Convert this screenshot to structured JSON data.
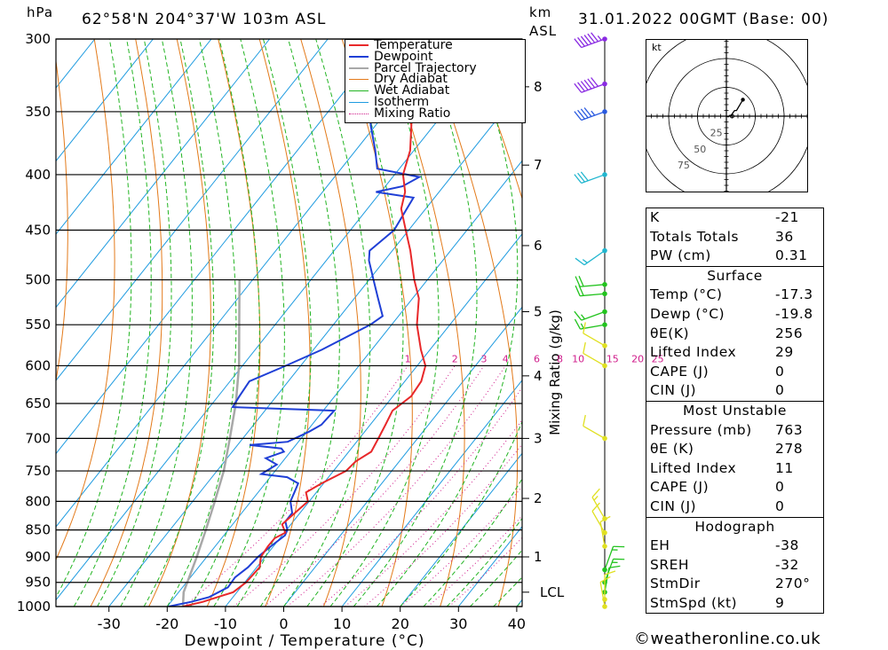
{
  "header": {
    "pressure_unit": "hPa",
    "location": "62°58'N  204°37'W  103m  ASL",
    "height_unit_line1": "km",
    "height_unit_line2": "ASL",
    "datetime": "31.01.2022  00GMT  (Base: 00)"
  },
  "colors": {
    "temperature": "#e8282a",
    "dewpoint": "#1f3fd6",
    "parcel": "#a8a8a8",
    "dry_adiabat": "#e37a1a",
    "wet_adiabat": "#22b422",
    "isotherm": "#1e9be0",
    "mixing_ratio": "#d01c8b",
    "wind_purple": "#8a2be2",
    "wind_blue": "#2a5ae0",
    "wind_cyan": "#21b6cf",
    "wind_green": "#22c31e",
    "wind_yellow": "#e0e020"
  },
  "chart_data": {
    "type": "line",
    "chart_kind": "skew-T log-P sounding",
    "xlabel": "Dewpoint / Temperature (°C)",
    "ylabel_left": "hPa",
    "ylabel_right": "Mixing Ratio (g/kg)",
    "xlim": [
      -40,
      40
    ],
    "ylim_pressure": [
      1000,
      300
    ],
    "x_ticks": [
      "-30",
      "-20",
      "-10",
      "0",
      "10",
      "20",
      "30",
      "40"
    ],
    "pressure_ticks": [
      "300",
      "350",
      "400",
      "450",
      "500",
      "550",
      "600",
      "650",
      "700",
      "750",
      "800",
      "850",
      "900",
      "950",
      "1000"
    ],
    "height_ticks_km": [
      {
        "label": "1",
        "p": 900
      },
      {
        "label": "2",
        "p": 795
      },
      {
        "label": "3",
        "p": 700
      },
      {
        "label": "4",
        "p": 613
      },
      {
        "label": "5",
        "p": 535
      },
      {
        "label": "6",
        "p": 465
      },
      {
        "label": "7",
        "p": 392
      },
      {
        "label": "8",
        "p": 332
      }
    ],
    "lcl_label": "LCL",
    "lcl_pressure": 970,
    "mixing_ratio_labels": [
      "1",
      "2",
      "3",
      "4",
      "6",
      "8",
      "10",
      "15",
      "20",
      "25"
    ],
    "legend": [
      "Temperature",
      "Dewpoint",
      "Parcel Trajectory",
      "Dry Adiabat",
      "Wet Adiabat",
      "Isotherm",
      "Mixing Ratio"
    ],
    "series": [
      {
        "name": "Temperature",
        "points": [
          [
            1000,
            -17.3
          ],
          [
            990,
            -15
          ],
          [
            970,
            -12
          ],
          [
            950,
            -12
          ],
          [
            920,
            -13
          ],
          [
            900,
            -15
          ],
          [
            880,
            -16
          ],
          [
            865,
            -16.5
          ],
          [
            855,
            -15.8
          ],
          [
            840,
            -18
          ],
          [
            800,
            -18
          ],
          [
            785,
            -20
          ],
          [
            770,
            -19
          ],
          [
            750,
            -17
          ],
          [
            735,
            -17
          ],
          [
            720,
            -16
          ],
          [
            700,
            -17
          ],
          [
            680,
            -18
          ],
          [
            660,
            -19
          ],
          [
            640,
            -18
          ],
          [
            620,
            -18.5
          ],
          [
            600,
            -20
          ],
          [
            580,
            -23
          ],
          [
            550,
            -27
          ],
          [
            520,
            -30
          ],
          [
            500,
            -33
          ],
          [
            470,
            -37
          ],
          [
            450,
            -40
          ],
          [
            430,
            -43
          ],
          [
            415,
            -44
          ],
          [
            400,
            -46
          ],
          [
            380,
            -47
          ],
          [
            360,
            -49
          ],
          [
            350,
            -50
          ],
          [
            330,
            -52
          ],
          [
            320,
            -52.5
          ],
          [
            300,
            -54
          ]
        ]
      },
      {
        "name": "Dewpoint",
        "points": [
          [
            1000,
            -19.8
          ],
          [
            990,
            -17
          ],
          [
            980,
            -15
          ],
          [
            960,
            -14
          ],
          [
            940,
            -15
          ],
          [
            920,
            -15
          ],
          [
            900,
            -15.5
          ],
          [
            880,
            -15.5
          ],
          [
            860,
            -15.3
          ],
          [
            850,
            -16
          ],
          [
            835,
            -18
          ],
          [
            820,
            -18.5
          ],
          [
            800,
            -21
          ],
          [
            785,
            -22
          ],
          [
            770,
            -23
          ],
          [
            760,
            -26
          ],
          [
            755,
            -31
          ],
          [
            740,
            -30
          ],
          [
            730,
            -33
          ],
          [
            720,
            -31
          ],
          [
            715,
            -32
          ],
          [
            710,
            -38
          ],
          [
            705,
            -32
          ],
          [
            690,
            -30
          ],
          [
            680,
            -29
          ],
          [
            660,
            -29
          ],
          [
            655,
            -47
          ],
          [
            640,
            -47.5
          ],
          [
            620,
            -48
          ],
          [
            600,
            -44
          ],
          [
            580,
            -40
          ],
          [
            550,
            -35
          ],
          [
            540,
            -34
          ],
          [
            520,
            -37
          ],
          [
            500,
            -40
          ],
          [
            480,
            -43
          ],
          [
            470,
            -44
          ],
          [
            450,
            -42
          ],
          [
            420,
            -42
          ],
          [
            415,
            -49
          ],
          [
            410,
            -45
          ],
          [
            402,
            -43
          ],
          [
            395,
            -51
          ],
          [
            380,
            -53
          ],
          [
            360,
            -56
          ],
          [
            350,
            -57
          ],
          [
            320,
            -57
          ],
          [
            300,
            -60
          ]
        ]
      },
      {
        "name": "Parcel Trajectory",
        "points": [
          [
            1000,
            -17.3
          ],
          [
            970,
            -20.5
          ],
          [
            900,
            -26
          ],
          [
            850,
            -30
          ],
          [
            800,
            -34
          ],
          [
            750,
            -38
          ],
          [
            700,
            -42.5
          ],
          [
            650,
            -47
          ],
          [
            600,
            -52
          ],
          [
            550,
            -57.5
          ],
          [
            500,
            -63
          ]
        ]
      }
    ],
    "surface": {
      "temp": -17.3,
      "dewp": -19.8
    },
    "hodograph": {
      "unit": "kt",
      "ring_labels": [
        "25",
        "50",
        "75"
      ],
      "trace_uv": [
        [
          0,
          0
        ],
        [
          3,
          -1
        ],
        [
          5,
          1
        ],
        [
          6,
          0
        ],
        [
          9,
          3
        ],
        [
          10,
          5
        ],
        [
          13,
          9
        ],
        [
          16,
          9
        ],
        [
          26,
          26
        ]
      ],
      "storm_motion_uv": [
        9,
        0
      ]
    },
    "wind_profile": [
      {
        "p": 300,
        "speed_kt": 65,
        "dir": 250,
        "color": "wind_purple"
      },
      {
        "p": 330,
        "speed_kt": 60,
        "dir": 250,
        "color": "wind_purple"
      },
      {
        "p": 350,
        "speed_kt": 45,
        "dir": 250,
        "color": "wind_blue"
      },
      {
        "p": 400,
        "speed_kt": 30,
        "dir": 250,
        "color": "wind_cyan"
      },
      {
        "p": 470,
        "speed_kt": 15,
        "dir": 235,
        "color": "wind_cyan"
      },
      {
        "p": 505,
        "speed_kt": 20,
        "dir": 265,
        "color": "wind_green"
      },
      {
        "p": 515,
        "speed_kt": 20,
        "dir": 265,
        "color": "wind_green"
      },
      {
        "p": 535,
        "speed_kt": 15,
        "dir": 250,
        "color": "wind_green"
      },
      {
        "p": 550,
        "speed_kt": 15,
        "dir": 260,
        "color": "wind_green"
      },
      {
        "p": 575,
        "speed_kt": 10,
        "dir": 300,
        "color": "wind_yellow"
      },
      {
        "p": 600,
        "speed_kt": 10,
        "dir": 300,
        "color": "wind_yellow"
      },
      {
        "p": 700,
        "speed_kt": 10,
        "dir": 300,
        "color": "wind_yellow"
      },
      {
        "p": 830,
        "speed_kt": 15,
        "dir": 330,
        "color": "wind_yellow"
      },
      {
        "p": 855,
        "speed_kt": 10,
        "dir": 330,
        "color": "wind_yellow"
      },
      {
        "p": 880,
        "speed_kt": 10,
        "dir": 350,
        "color": "wind_yellow"
      },
      {
        "p": 925,
        "speed_kt": 15,
        "dir": 20,
        "color": "wind_green"
      },
      {
        "p": 950,
        "speed_kt": 15,
        "dir": 20,
        "color": "wind_green"
      },
      {
        "p": 970,
        "speed_kt": 10,
        "dir": 10,
        "color": "wind_green"
      },
      {
        "p": 985,
        "speed_kt": 10,
        "dir": 360,
        "color": "wind_yellow"
      },
      {
        "p": 1000,
        "speed_kt": 10,
        "dir": 350,
        "color": "wind_yellow"
      }
    ]
  },
  "indices": {
    "general": [
      {
        "label": "K",
        "value": "-21"
      },
      {
        "label": "Totals Totals",
        "value": "36"
      },
      {
        "label": "PW (cm)",
        "value": "0.31"
      }
    ],
    "surface_title": "Surface",
    "surface": [
      {
        "label": "Temp (°C)",
        "value": "-17.3"
      },
      {
        "label": "Dewp (°C)",
        "value": "-19.8"
      },
      {
        "label": "θE(K)",
        "value": "256"
      },
      {
        "label": "Lifted Index",
        "value": "29"
      },
      {
        "label": "CAPE (J)",
        "value": "0"
      },
      {
        "label": "CIN (J)",
        "value": "0"
      }
    ],
    "mu_title": "Most Unstable",
    "mu": [
      {
        "label": "Pressure (mb)",
        "value": "763"
      },
      {
        "label": "θE (K)",
        "value": "278"
      },
      {
        "label": "Lifted Index",
        "value": "11"
      },
      {
        "label": "CAPE (J)",
        "value": "0"
      },
      {
        "label": "CIN (J)",
        "value": "0"
      }
    ],
    "hodo_title": "Hodograph",
    "hodo": [
      {
        "label": "EH",
        "value": "-38"
      },
      {
        "label": "SREH",
        "value": "-32"
      },
      {
        "label": "StmDir",
        "value": "270°"
      },
      {
        "label": "StmSpd (kt)",
        "value": "9"
      }
    ]
  },
  "footer": {
    "copyright": "©weatheronline.co.uk"
  }
}
